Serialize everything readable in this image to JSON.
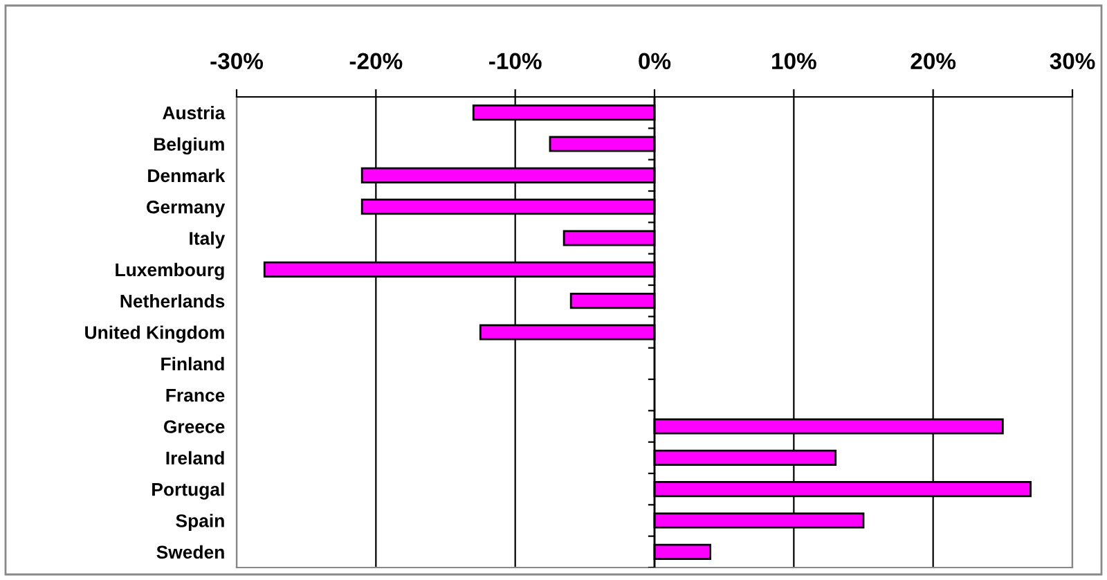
{
  "chart_data": {
    "type": "bar",
    "orientation": "horizontal",
    "categories": [
      "Austria",
      "Belgium",
      "Denmark",
      "Germany",
      "Italy",
      "Luxembourg",
      "Netherlands",
      "United Kingdom",
      "Finland",
      "France",
      "Greece",
      "Ireland",
      "Portugal",
      "Spain",
      "Sweden"
    ],
    "values": [
      -13,
      -7.5,
      -21,
      -21,
      -6.5,
      -28,
      -6,
      -12.5,
      null,
      null,
      25,
      13,
      27,
      15,
      4
    ],
    "color": "#ff00ff",
    "xlim": [
      -30,
      30
    ],
    "xticks": [
      {
        "value": -30,
        "label": "-30%"
      },
      {
        "value": -20,
        "label": "-20%"
      },
      {
        "value": -10,
        "label": "-10%"
      },
      {
        "value": 0,
        "label": "0%"
      },
      {
        "value": 10,
        "label": "10%"
      },
      {
        "value": 20,
        "label": "20%"
      },
      {
        "value": 30,
        "label": "30%"
      }
    ],
    "grid": "x"
  }
}
